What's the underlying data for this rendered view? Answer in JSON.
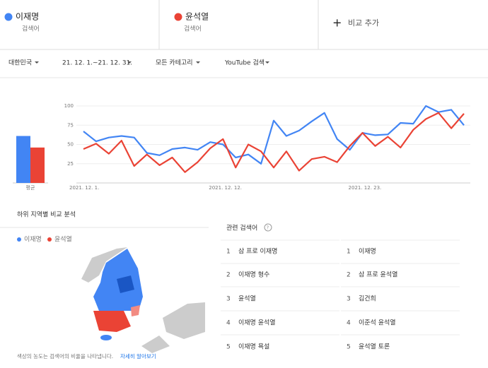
{
  "header": {
    "term_label": "검색어",
    "add_label": "비교 추가"
  },
  "filters": [
    "대한민국",
    "21. 12. 1.~21. 12. 31.",
    "모든 카테고리",
    "YouTube 검색"
  ],
  "chart_data": {
    "type": "line",
    "categories": [
      "2021. 12. 1.",
      null,
      null,
      null,
      null,
      null,
      null,
      null,
      null,
      null,
      null,
      "2021. 12. 12.",
      null,
      null,
      null,
      null,
      null,
      null,
      null,
      null,
      null,
      null,
      "2021. 12. 23.",
      null,
      null,
      null,
      null,
      null,
      null,
      null,
      null
    ],
    "series": [
      {
        "name": "이재명",
        "color": "#4285f4",
        "values": [
          67,
          54,
          59,
          61,
          59,
          39,
          36,
          44,
          46,
          43,
          53,
          50,
          33,
          37,
          25,
          81,
          61,
          68,
          80,
          91,
          57,
          43,
          65,
          62,
          63,
          78,
          77,
          100,
          92,
          95,
          75
        ]
      },
      {
        "name": "윤석열",
        "color": "#ea4335",
        "values": [
          44,
          51,
          38,
          55,
          22,
          37,
          23,
          33,
          14,
          27,
          45,
          57,
          20,
          50,
          41,
          20,
          41,
          16,
          31,
          34,
          27,
          48,
          65,
          48,
          60,
          46,
          69,
          83,
          91,
          71,
          90
        ]
      }
    ],
    "ylim": [
      0,
      100
    ],
    "yticks": [
      25,
      50,
      75,
      100
    ],
    "grid": true,
    "average_label": "평균",
    "averages": [
      61,
      46
    ]
  },
  "regional": {
    "title": "하위 지역별 비교 분석",
    "footnote": "색상의 농도는 검색어의 비율을 나타냅니다.",
    "link": "자세히 알아보기"
  },
  "related": {
    "title": "관련 검색어",
    "columns": [
      [
        {
          "rank": 1,
          "query": "삼 프로 이재명"
        },
        {
          "rank": 2,
          "query": "이재명 형수"
        },
        {
          "rank": 3,
          "query": "윤석열"
        },
        {
          "rank": 4,
          "query": "이재명 윤석열"
        },
        {
          "rank": 5,
          "query": "이재명 욕설"
        }
      ],
      [
        {
          "rank": 1,
          "query": "이재명"
        },
        {
          "rank": 2,
          "query": "삼 프로 윤석열"
        },
        {
          "rank": 3,
          "query": "김건희"
        },
        {
          "rank": 4,
          "query": "이준석 윤석열"
        },
        {
          "rank": 5,
          "query": "윤석열 토론"
        }
      ]
    ]
  }
}
